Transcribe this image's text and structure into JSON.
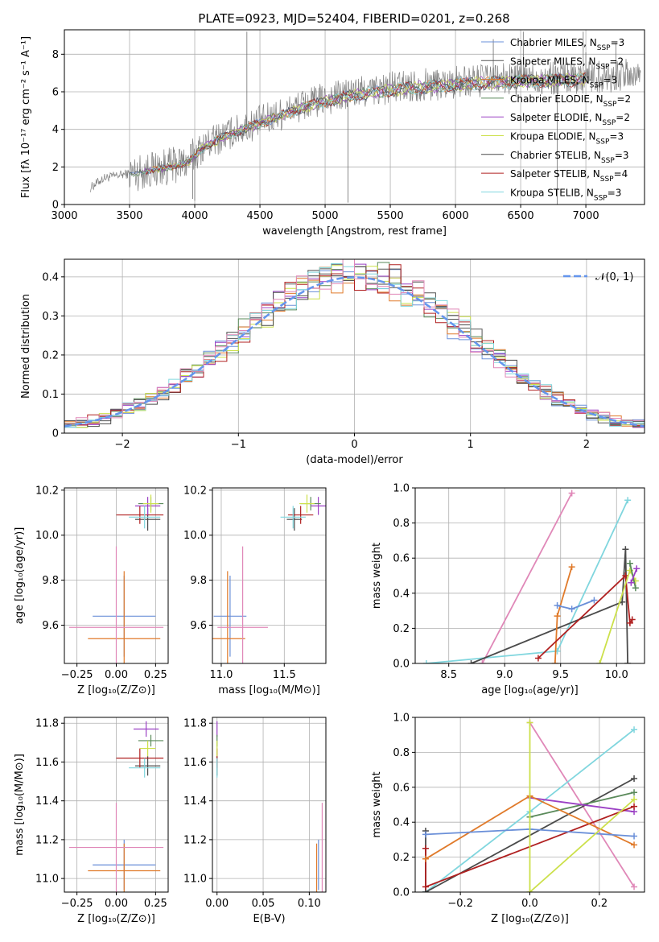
{
  "figure_title": "PLATE=0923, MJD=52404, FIBERID=0201, z=0.268",
  "colors": {
    "Chabrier MILES": "#6a8fd8",
    "Salpeter MILES": "#555555",
    "Kroupa MILES": "#e07a2a",
    "Chabrier ELODIE": "#5a8a5a",
    "Salpeter ELODIE": "#9b40c4",
    "Kroupa ELODIE": "#cce04a",
    "Chabrier STELIB": "#4a4a4a",
    "Salpeter STELIB": "#b02020",
    "Kroupa STELIB": "#80d6de",
    "extra": "#e088b8",
    "normal_curve": "#6495ed"
  },
  "chart_data": [
    {
      "id": "spectrum",
      "type": "line",
      "title": "PLATE=0923, MJD=52404, FIBERID=0201, z=0.268",
      "xlabel": "wavelength [Angstrom, rest frame]",
      "ylabel": "Flux [fλ 10⁻¹⁷ erg cm⁻² s⁻¹ A⁻¹]",
      "xlim": [
        3000,
        7450
      ],
      "ylim": [
        0,
        9.3
      ],
      "xticks": [
        3000,
        3500,
        4000,
        4500,
        5000,
        5500,
        6000,
        6500,
        7000
      ],
      "yticks": [
        0,
        2,
        4,
        6,
        8
      ],
      "legend_placement": "right",
      "legend": [
        {
          "label": "Chabrier MILES, N",
          "sub": "SSP",
          "tail": "=3",
          "color_key": "Chabrier MILES"
        },
        {
          "label": "Salpeter MILES, N",
          "sub": "SSP",
          "tail": "=2",
          "color_key": "Salpeter MILES"
        },
        {
          "label": "Kroupa MILES, N",
          "sub": "SSP",
          "tail": "=3",
          "color_key": "Kroupa MILES"
        },
        {
          "label": "Chabrier ELODIE, N",
          "sub": "SSP",
          "tail": "=2",
          "color_key": "Chabrier ELODIE"
        },
        {
          "label": "Salpeter ELODIE, N",
          "sub": "SSP",
          "tail": "=2",
          "color_key": "Salpeter ELODIE"
        },
        {
          "label": "Kroupa ELODIE, N",
          "sub": "SSP",
          "tail": "=3",
          "color_key": "Kroupa ELODIE"
        },
        {
          "label": "Chabrier STELIB, N",
          "sub": "SSP",
          "tail": "=3",
          "color_key": "Chabrier STELIB"
        },
        {
          "label": "Salpeter STELIB, N",
          "sub": "SSP",
          "tail": "=4",
          "color_key": "Salpeter STELIB"
        },
        {
          "label": "Kroupa STELIB, N",
          "sub": "SSP",
          "tail": "=3",
          "color_key": "Kroupa STELIB"
        }
      ],
      "data_range": [
        3200,
        7420
      ],
      "continuum": [
        [
          3200,
          0.9
        ],
        [
          3300,
          1.4
        ],
        [
          3450,
          1.6
        ],
        [
          3550,
          1.7
        ],
        [
          3700,
          1.9
        ],
        [
          3850,
          2.1
        ],
        [
          3950,
          2.3
        ],
        [
          4050,
          3.0
        ],
        [
          4200,
          3.6
        ],
        [
          4350,
          4.0
        ],
        [
          4500,
          4.4
        ],
        [
          4650,
          4.8
        ],
        [
          4800,
          5.2
        ],
        [
          5000,
          5.6
        ],
        [
          5200,
          5.9
        ],
        [
          5400,
          6.1
        ],
        [
          5600,
          6.3
        ],
        [
          5800,
          6.4
        ],
        [
          6000,
          6.5
        ],
        [
          6200,
          6.6
        ],
        [
          6400,
          6.65
        ],
        [
          6600,
          6.7
        ],
        [
          6800,
          6.75
        ],
        [
          7000,
          6.8
        ],
        [
          7200,
          6.85
        ],
        [
          7420,
          6.9
        ]
      ],
      "spikes": [
        [
          4400,
          9.2
        ],
        [
          5175,
          0.1
        ],
        [
          6780,
          0.0
        ],
        [
          3985,
          0.3
        ],
        [
          6290,
          8.8
        ],
        [
          6980,
          9.2
        ],
        [
          7000,
          8.1
        ],
        [
          6520,
          9.2
        ],
        [
          7230,
          8.6
        ],
        [
          4000,
          0.2
        ]
      ]
    },
    {
      "id": "residuals",
      "type": "histogram",
      "xlabel": "(data-model)/error",
      "ylabel": "Normed distribution",
      "xlim": [
        -2.5,
        2.5
      ],
      "ylim": [
        0,
        0.445
      ],
      "xticks": [
        -2,
        -1,
        0,
        1,
        2
      ],
      "yticks": [
        0.0,
        0.1,
        0.2,
        0.3,
        0.4
      ],
      "bin_width": 0.1,
      "legend": "𝒩(0, 1)",
      "legend_placement": "top-right"
    },
    {
      "id": "age_vs_Z",
      "type": "scatter",
      "xlabel": "Z [log₁₀(Z/Z⊙)]",
      "ylabel": "age  [log₁₀(age/yr)]",
      "xlim": [
        -0.33,
        0.33
      ],
      "ylim": [
        9.43,
        10.21
      ],
      "xticks": [
        -0.25,
        0.0,
        0.25
      ],
      "xtick_labels": [
        "−0.25",
        "0.00",
        "0.25"
      ],
      "yticks": [
        9.6,
        9.8,
        10.0,
        10.2
      ],
      "ytick_labels": [
        "9.6",
        "9.8",
        "10.0",
        "10.2"
      ],
      "points": [
        {
          "c": "Chabrier MILES",
          "x": 0.05,
          "xe": 0.2,
          "y": 9.64,
          "ye": 0.18
        },
        {
          "c": "Kroupa MILES",
          "x": 0.05,
          "xe": 0.23,
          "y": 9.54,
          "ye": 0.3
        },
        {
          "c": "extra",
          "x": 0.0,
          "xe": 0.3,
          "y": 9.59,
          "ye": 0.36
        },
        {
          "c": "Chabrier STELIB",
          "x": 0.2,
          "xe": 0.08,
          "y": 10.07,
          "ye": 0.05
        },
        {
          "c": "Salpeter STELIB",
          "x": 0.15,
          "xe": 0.15,
          "y": 10.09,
          "ye": 0.04
        },
        {
          "c": "Salpeter ELODIE",
          "x": 0.2,
          "xe": 0.08,
          "y": 10.13,
          "ye": 0.04
        },
        {
          "c": "Chabrier ELODIE",
          "x": 0.22,
          "xe": 0.08,
          "y": 10.14,
          "ye": 0.03
        },
        {
          "c": "Kroupa ELODIE",
          "x": 0.22,
          "xe": 0.05,
          "y": 10.14,
          "ye": 0.04
        },
        {
          "c": "Kroupa STELIB",
          "x": 0.18,
          "xe": 0.1,
          "y": 10.08,
          "ye": 0.05
        }
      ]
    },
    {
      "id": "age_vs_mass",
      "type": "scatter",
      "xlabel": "mass [log₁₀(M/M⊙)]",
      "ylabel": "",
      "xlim": [
        10.93,
        11.83
      ],
      "ylim": [
        9.43,
        10.21
      ],
      "xticks": [
        11.0,
        11.5
      ],
      "xtick_labels": [
        "11.0",
        "11.5"
      ],
      "yticks": [
        9.6,
        9.8,
        10.0,
        10.2
      ],
      "ytick_labels": [
        "9.6",
        "9.8",
        "10.0",
        "10.2"
      ],
      "points": [
        {
          "c": "Chabrier MILES",
          "x": 11.07,
          "xe": 0.13,
          "y": 9.64,
          "ye": 0.18
        },
        {
          "c": "Kroupa MILES",
          "x": 11.05,
          "xe": 0.14,
          "y": 9.54,
          "ye": 0.3
        },
        {
          "c": "extra",
          "x": 11.17,
          "xe": 0.2,
          "y": 9.59,
          "ye": 0.36
        },
        {
          "c": "Chabrier STELIB",
          "x": 11.58,
          "xe": 0.06,
          "y": 10.07,
          "ye": 0.05
        },
        {
          "c": "Salpeter STELIB",
          "x": 11.63,
          "xe": 0.1,
          "y": 10.09,
          "ye": 0.04
        },
        {
          "c": "Salpeter ELODIE",
          "x": 11.77,
          "xe": 0.06,
          "y": 10.13,
          "ye": 0.04
        },
        {
          "c": "Chabrier ELODIE",
          "x": 11.71,
          "xe": 0.08,
          "y": 10.14,
          "ye": 0.03
        },
        {
          "c": "Kroupa ELODIE",
          "x": 11.68,
          "xe": 0.06,
          "y": 10.14,
          "ye": 0.04
        },
        {
          "c": "Kroupa STELIB",
          "x": 11.57,
          "xe": 0.1,
          "y": 10.08,
          "ye": 0.05
        }
      ]
    },
    {
      "id": "massweight_vs_age",
      "type": "line",
      "xlabel": "age  [log₁₀(age/yr)]",
      "ylabel": "mass weight",
      "xlim": [
        8.2,
        10.25
      ],
      "ylim": [
        0,
        1.0
      ],
      "xticks": [
        8.5,
        9.0,
        9.5,
        10.0
      ],
      "xtick_labels": [
        "8.5",
        "9.0",
        "9.5",
        "10.0"
      ],
      "yticks": [
        0,
        0.2,
        0.4,
        0.6,
        0.8,
        1.0
      ],
      "ytick_labels": [
        "0.0",
        "0.2",
        "0.4",
        "0.6",
        "0.8",
        "1.0"
      ],
      "series": [
        {
          "c": "extra",
          "pts": [
            [
              8.8,
              0.0
            ],
            [
              9.6,
              0.97
            ]
          ]
        },
        {
          "c": "Kroupa STELIB",
          "pts": [
            [
              8.3,
              0.0
            ],
            [
              9.47,
              0.07
            ],
            [
              10.1,
              0.93
            ]
          ]
        },
        {
          "c": "Chabrier STELIB",
          "pts": [
            [
              8.7,
              0.0
            ],
            [
              10.05,
              0.35
            ],
            [
              10.08,
              0.65
            ],
            [
              10.1,
              0.0
            ]
          ]
        },
        {
          "c": "Kroupa MILES",
          "pts": [
            [
              9.45,
              0.0
            ],
            [
              9.47,
              0.27
            ],
            [
              9.6,
              0.55
            ]
          ]
        },
        {
          "c": "Chabrier MILES",
          "pts": [
            [
              9.47,
              0.33
            ],
            [
              9.6,
              0.31
            ],
            [
              9.8,
              0.36
            ]
          ]
        },
        {
          "c": "Salpeter STELIB",
          "pts": [
            [
              9.3,
              0.03
            ],
            [
              10.08,
              0.5
            ],
            [
              10.12,
              0.23
            ],
            [
              10.14,
              0.25
            ]
          ]
        },
        {
          "c": "Kroupa ELODIE",
          "pts": [
            [
              9.85,
              0.0
            ],
            [
              10.12,
              0.53
            ],
            [
              10.17,
              0.47
            ]
          ]
        },
        {
          "c": "Chabrier ELODIE",
          "pts": [
            [
              10.12,
              0.57
            ],
            [
              10.17,
              0.43
            ]
          ]
        },
        {
          "c": "Salpeter ELODIE",
          "pts": [
            [
              10.13,
              0.46
            ],
            [
              10.18,
              0.54
            ]
          ]
        }
      ]
    },
    {
      "id": "mass_vs_Z",
      "type": "scatter",
      "xlabel": "Z [log₁₀(Z/Z⊙)]",
      "ylabel": "mass [log₁₀(M/M⊙)]",
      "xlim": [
        -0.33,
        0.33
      ],
      "ylim": [
        10.93,
        11.83
      ],
      "xticks": [
        -0.25,
        0.0,
        0.25
      ],
      "xtick_labels": [
        "−0.25",
        "0.00",
        "0.25"
      ],
      "yticks": [
        11.0,
        11.2,
        11.4,
        11.6,
        11.8
      ],
      "ytick_labels": [
        "11.0",
        "11.2",
        "11.4",
        "11.6",
        "11.8"
      ],
      "points": [
        {
          "c": "Chabrier MILES",
          "x": 0.05,
          "xe": 0.2,
          "y": 11.07,
          "ye": 0.13
        },
        {
          "c": "Kroupa MILES",
          "x": 0.05,
          "xe": 0.23,
          "y": 11.04,
          "ye": 0.14
        },
        {
          "c": "extra",
          "x": 0.0,
          "xe": 0.3,
          "y": 11.16,
          "ye": 0.23
        },
        {
          "c": "Chabrier STELIB",
          "x": 0.2,
          "xe": 0.08,
          "y": 11.58,
          "ye": 0.05
        },
        {
          "c": "Salpeter STELIB",
          "x": 0.15,
          "xe": 0.15,
          "y": 11.62,
          "ye": 0.05
        },
        {
          "c": "Salpeter ELODIE",
          "x": 0.19,
          "xe": 0.08,
          "y": 11.77,
          "ye": 0.04
        },
        {
          "c": "Chabrier ELODIE",
          "x": 0.22,
          "xe": 0.08,
          "y": 11.71,
          "ye": 0.03
        },
        {
          "c": "Kroupa ELODIE",
          "x": 0.2,
          "xe": 0.05,
          "y": 11.67,
          "ye": 0.04
        },
        {
          "c": "Kroupa STELIB",
          "x": 0.18,
          "xe": 0.1,
          "y": 11.57,
          "ye": 0.05
        }
      ]
    },
    {
      "id": "mass_vs_EBV",
      "type": "scatter",
      "xlabel": "E(B-V)",
      "ylabel": "",
      "xlim": [
        -0.005,
        0.118
      ],
      "ylim": [
        10.93,
        11.83
      ],
      "xticks": [
        0.0,
        0.05,
        0.1
      ],
      "xtick_labels": [
        "0.00",
        "0.05",
        "0.10"
      ],
      "yticks": [
        11.0,
        11.2,
        11.4,
        11.6,
        11.8
      ],
      "ytick_labels": [
        "11.0",
        "11.2",
        "11.4",
        "11.6",
        "11.8"
      ],
      "points": [
        {
          "c": "Chabrier MILES",
          "x": 0.11,
          "xe": 0.0,
          "y": 11.07,
          "ye": 0.13
        },
        {
          "c": "Kroupa MILES",
          "x": 0.108,
          "xe": 0.0,
          "y": 11.04,
          "ye": 0.14
        },
        {
          "c": "extra",
          "x": 0.114,
          "xe": 0.0,
          "y": 11.16,
          "ye": 0.23
        },
        {
          "c": "Chabrier STELIB",
          "x": 0.0,
          "xe": 0.0,
          "y": 11.58,
          "ye": 0.05
        },
        {
          "c": "Salpeter STELIB",
          "x": 0.0,
          "xe": 0.0,
          "y": 11.62,
          "ye": 0.05
        },
        {
          "c": "Salpeter ELODIE",
          "x": 0.0,
          "xe": 0.0,
          "y": 11.77,
          "ye": 0.04
        },
        {
          "c": "Chabrier ELODIE",
          "x": 0.0,
          "xe": 0.0,
          "y": 11.71,
          "ye": 0.03
        },
        {
          "c": "Kroupa ELODIE",
          "x": 0.0,
          "xe": 0.0,
          "y": 11.67,
          "ye": 0.04
        },
        {
          "c": "Kroupa STELIB",
          "x": 0.0,
          "xe": 0.0,
          "y": 11.57,
          "ye": 0.05
        }
      ]
    },
    {
      "id": "massweight_vs_Z",
      "type": "line",
      "xlabel": "Z [log₁₀(Z/Z⊙)]",
      "ylabel": "mass weight",
      "xlim": [
        -0.33,
        0.33
      ],
      "ylim": [
        0,
        1.0
      ],
      "xticks": [
        -0.2,
        0.0,
        0.2
      ],
      "xtick_labels": [
        "−0.2",
        "0.0",
        "0.2"
      ],
      "yticks": [
        0,
        0.2,
        0.4,
        0.6,
        0.8,
        1.0
      ],
      "ytick_labels": [
        "0.0",
        "0.2",
        "0.4",
        "0.6",
        "0.8",
        "1.0"
      ],
      "series": [
        {
          "c": "extra",
          "pts": [
            [
              0.0,
              0.97
            ],
            [
              0.3,
              0.03
            ]
          ]
        },
        {
          "c": "Kroupa STELIB",
          "pts": [
            [
              -0.3,
              0.0
            ],
            [
              0.0,
              0.46
            ],
            [
              0.3,
              0.93
            ]
          ]
        },
        {
          "c": "Chabrier STELIB",
          "pts": [
            [
              -0.3,
              0.35
            ],
            [
              -0.3,
              0.0
            ],
            [
              0.3,
              0.65
            ]
          ]
        },
        {
          "c": "Chabrier ELODIE",
          "pts": [
            [
              0.0,
              0.43
            ],
            [
              0.3,
              0.57
            ]
          ]
        },
        {
          "c": "Salpeter ELODIE",
          "pts": [
            [
              0.0,
              0.54
            ],
            [
              0.3,
              0.46
            ]
          ]
        },
        {
          "c": "Salpeter STELIB",
          "pts": [
            [
              -0.3,
              0.25
            ],
            [
              -0.3,
              0.03
            ],
            [
              0.3,
              0.49
            ]
          ]
        },
        {
          "c": "Kroupa MILES",
          "pts": [
            [
              -0.3,
              0.19
            ],
            [
              0.0,
              0.55
            ],
            [
              0.3,
              0.27
            ]
          ]
        },
        {
          "c": "Chabrier MILES",
          "pts": [
            [
              -0.3,
              0.33
            ],
            [
              0.0,
              0.36
            ],
            [
              0.3,
              0.32
            ]
          ]
        },
        {
          "c": "Kroupa ELODIE",
          "pts": [
            [
              0.0,
              0.97
            ],
            [
              0.0,
              0.0
            ],
            [
              0.3,
              0.53
            ]
          ]
        }
      ]
    }
  ]
}
